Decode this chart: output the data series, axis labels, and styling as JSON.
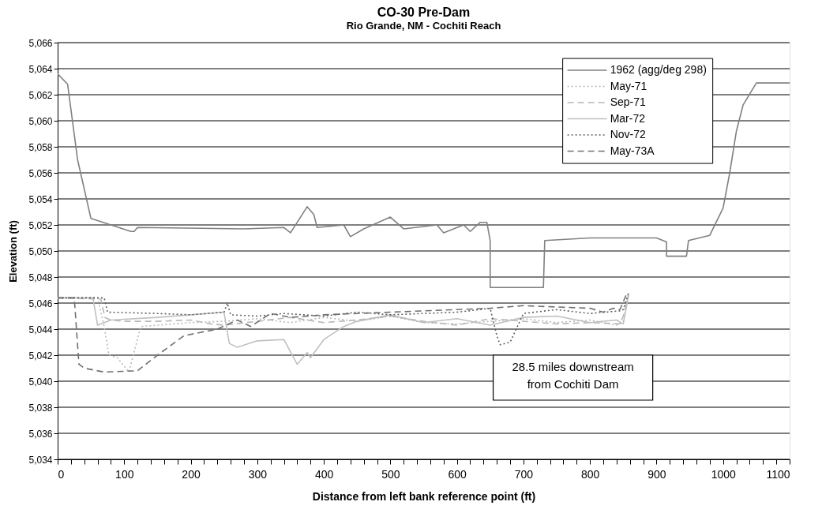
{
  "chart_data": {
    "type": "line",
    "title": "CO-30  Pre-Dam",
    "subtitle": "Rio Grande, NM - Cochiti Reach",
    "xlabel": "Distance from left bank reference point (ft)",
    "ylabel": "Elevation (ft)",
    "annotations": [
      "28.5 miles downstream\nfrom Cochiti Dam"
    ],
    "xlim": [
      0,
      1100
    ],
    "ylim": [
      5034,
      5066
    ],
    "xticks": [
      0,
      {
        "value": 20,
        "label": null
      },
      {
        "value": 40,
        "label": null
      },
      {
        "value": 60,
        "label": null
      },
      {
        "value": 80,
        "label": null
      },
      100,
      {
        "value": 120,
        "label": null
      },
      {
        "value": 140,
        "label": null
      },
      {
        "value": 160,
        "label": null
      },
      {
        "value": 180,
        "label": null
      },
      200,
      {
        "value": 220,
        "label": null
      },
      {
        "value": 240,
        "label": null
      },
      {
        "value": 260,
        "label": null
      },
      {
        "value": 280,
        "label": null
      },
      300,
      {
        "value": 320,
        "label": null
      },
      {
        "value": 340,
        "label": null
      },
      {
        "value": 360,
        "label": null
      },
      {
        "value": 380,
        "label": null
      },
      400,
      {
        "value": 420,
        "label": null
      },
      {
        "value": 440,
        "label": null
      },
      {
        "value": 460,
        "label": null
      },
      {
        "value": 480,
        "label": null
      },
      500,
      {
        "value": 520,
        "label": null
      },
      {
        "value": 540,
        "label": null
      },
      {
        "value": 560,
        "label": null
      },
      {
        "value": 580,
        "label": null
      },
      600,
      {
        "value": 620,
        "label": null
      },
      {
        "value": 640,
        "label": null
      },
      {
        "value": 660,
        "label": null
      },
      {
        "value": 680,
        "label": null
      },
      700,
      {
        "value": 720,
        "label": null
      },
      {
        "value": 740,
        "label": null
      },
      {
        "value": 760,
        "label": null
      },
      {
        "value": 780,
        "label": null
      },
      800,
      {
        "value": 820,
        "label": null
      },
      {
        "value": 840,
        "label": null
      },
      {
        "value": 860,
        "label": null
      },
      {
        "value": 880,
        "label": null
      },
      900,
      {
        "value": 920,
        "label": null
      },
      {
        "value": 940,
        "label": null
      },
      {
        "value": 960,
        "label": null
      },
      {
        "value": 980,
        "label": null
      },
      1000,
      {
        "value": 1020,
        "label": null
      },
      {
        "value": 1040,
        "label": null
      },
      {
        "value": 1060,
        "label": null
      },
      {
        "value": 1080,
        "label": null
      },
      1100
    ],
    "yticks": [
      {
        "value": 5034,
        "label": "5,034"
      },
      {
        "value": 5036,
        "label": "5,036"
      },
      {
        "value": 5038,
        "label": "5,038"
      },
      {
        "value": 5040,
        "label": "5,040"
      },
      {
        "value": 5042,
        "label": "5,042"
      },
      {
        "value": 5044,
        "label": "5,044"
      },
      {
        "value": 5046,
        "label": "5,046"
      },
      {
        "value": 5048,
        "label": "5,048"
      },
      {
        "value": 5050,
        "label": "5,050"
      },
      {
        "value": 5052,
        "label": "5,052"
      },
      {
        "value": 5054,
        "label": "5,054"
      },
      {
        "value": 5056,
        "label": "5,056"
      },
      {
        "value": 5058,
        "label": "5,058"
      },
      {
        "value": 5060,
        "label": "5,060"
      },
      {
        "value": 5062,
        "label": "5,062"
      },
      {
        "value": 5064,
        "label": "5,064"
      },
      {
        "value": 5066,
        "label": "5,066"
      }
    ],
    "grid": "y",
    "legend": "top right",
    "series": [
      {
        "name": "1962 (agg/deg 298)",
        "color": "#808080",
        "line_style": "solid",
        "x": [
          0,
          15,
          30,
          50,
          80,
          110,
          115,
          120,
          280,
          340,
          350,
          365,
          375,
          385,
          390,
          430,
          440,
          460,
          500,
          520,
          570,
          580,
          610,
          620,
          635,
          645,
          650,
          650,
          730,
          732,
          800,
          900,
          915,
          915,
          945,
          948,
          980,
          1000,
          1010,
          1020,
          1030,
          1050,
          1100
        ],
        "values": [
          5063.6,
          5062.8,
          5057,
          5052.5,
          5052,
          5051.5,
          5051.5,
          5051.8,
          5051.7,
          5051.8,
          5051.4,
          5052.6,
          5053.4,
          5052.8,
          5051.8,
          5052,
          5051.1,
          5051.7,
          5052.6,
          5051.7,
          5052,
          5051.4,
          5052,
          5051.5,
          5052.2,
          5052.2,
          5050.8,
          5047.2,
          5047.2,
          5050.8,
          5051,
          5051,
          5050.7,
          5049.6,
          5049.6,
          5050.8,
          5051.2,
          5053.3,
          5056,
          5059.2,
          5061.2,
          5062.9,
          5062.9
        ]
      },
      {
        "name": "May-71",
        "color": "#b8b8b8",
        "line_style": "dotted",
        "x": [
          0,
          60,
          70,
          77,
          90,
          107,
          125,
          150,
          200,
          250,
          300,
          350,
          400,
          450,
          500,
          550,
          600,
          650,
          700,
          750,
          800,
          840,
          850,
          858
        ],
        "values": [
          5046.4,
          5046.4,
          5044.2,
          5042,
          5041.8,
          5040.7,
          5044.2,
          5044.3,
          5044.5,
          5044.6,
          5044.8,
          5044.5,
          5044.9,
          5044.6,
          5045,
          5044.5,
          5044.4,
          5044.6,
          5044.8,
          5044.5,
          5044.7,
          5044.3,
          5044.6,
          5046.8
        ]
      },
      {
        "name": "Sep-71",
        "color": "#b8b8b8",
        "line_style": "dashed",
        "x": [
          0,
          65,
          71,
          80,
          100,
          150,
          200,
          230,
          250,
          300,
          350,
          400,
          450,
          500,
          550,
          600,
          650,
          700,
          750,
          800,
          845,
          850,
          858
        ],
        "values": [
          5046.4,
          5046.3,
          5044.9,
          5044.7,
          5044.6,
          5044.6,
          5044.7,
          5044.4,
          5044.3,
          5044.6,
          5044.9,
          5044.5,
          5044.7,
          5045,
          5044.6,
          5044.3,
          5044.8,
          5044.6,
          5044.4,
          5044.5,
          5044.4,
          5045,
          5046.6
        ]
      },
      {
        "name": "Mar-72",
        "color": "#c0c0c0",
        "line_style": "solid",
        "x": [
          0,
          50,
          53,
          60,
          80,
          150,
          200,
          250,
          258,
          270,
          300,
          340,
          360,
          375,
          380,
          400,
          430,
          450,
          500,
          550,
          600,
          650,
          700,
          750,
          800,
          840,
          850,
          858
        ],
        "values": [
          5046.4,
          5046.4,
          5046.4,
          5044.3,
          5044.7,
          5044.9,
          5045.1,
          5045.3,
          5042.9,
          5042.6,
          5043.1,
          5043.2,
          5041.3,
          5042.2,
          5041.8,
          5043.2,
          5044.2,
          5044.6,
          5045.1,
          5044.5,
          5044.8,
          5044.3,
          5044.9,
          5045,
          5044.5,
          5044.7,
          5044.4,
          5046.6
        ]
      },
      {
        "name": "Nov-72",
        "color": "#606060",
        "line_style": "dotted",
        "x": [
          0,
          70,
          75,
          150,
          200,
          250,
          255,
          260,
          300,
          340,
          400,
          450,
          500,
          550,
          600,
          650,
          660,
          665,
          680,
          700,
          750,
          800,
          845,
          850,
          858
        ],
        "values": [
          5046.4,
          5046.4,
          5045.3,
          5045.2,
          5045.1,
          5045.3,
          5046,
          5045.1,
          5045,
          5045.2,
          5045,
          5045.3,
          5045.1,
          5045.2,
          5045.3,
          5045.6,
          5043.5,
          5042.8,
          5043,
          5045.2,
          5045.5,
          5045.2,
          5045.4,
          5045.5,
          5046.8
        ]
      },
      {
        "name": "May-73A",
        "color": "#707070",
        "line_style": "dashed",
        "x": [
          0,
          25,
          32,
          40,
          70,
          120,
          150,
          190,
          240,
          270,
          290,
          320,
          350,
          400,
          450,
          500,
          550,
          600,
          650,
          700,
          750,
          800,
          820,
          835,
          845,
          855
        ],
        "values": [
          5046.4,
          5046.4,
          5041.3,
          5041,
          5040.7,
          5040.8,
          5042,
          5043.5,
          5044,
          5044.7,
          5044.2,
          5045.2,
          5044.9,
          5045.1,
          5045.2,
          5045.3,
          5045.4,
          5045.5,
          5045.6,
          5045.8,
          5045.7,
          5045.6,
          5045.3,
          5045.6,
          5045.5,
          5046.7
        ]
      }
    ]
  }
}
